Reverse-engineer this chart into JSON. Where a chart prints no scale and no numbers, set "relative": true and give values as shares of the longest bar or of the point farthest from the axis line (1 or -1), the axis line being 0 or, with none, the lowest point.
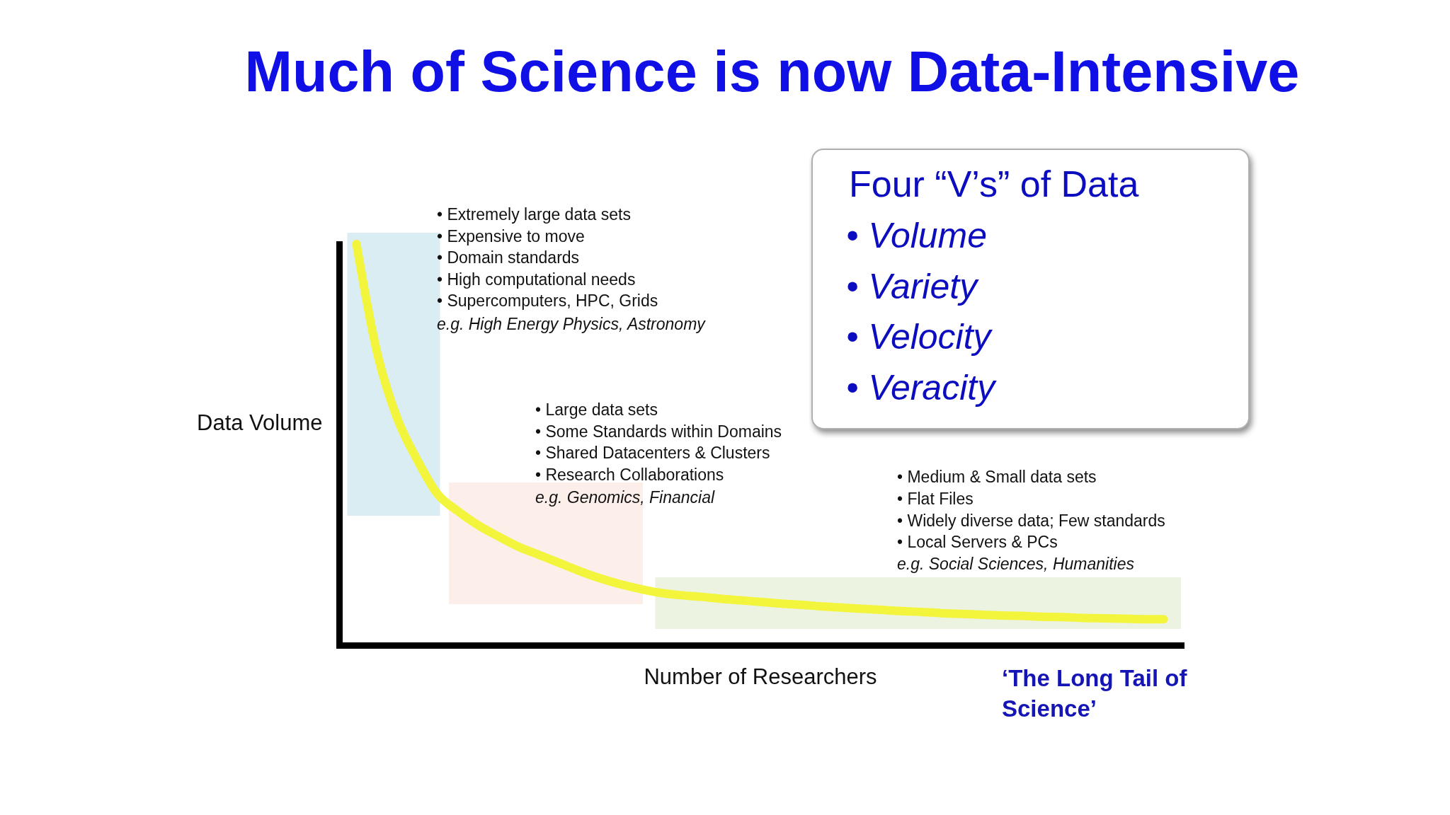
{
  "chart_data": [
    {
      "type": "line",
      "title": "Much of Science is now Data-Intensive",
      "xlabel": "Number of Researchers",
      "ylabel": "Data Volume",
      "relative": true,
      "tick_labels": false,
      "categories": [
        null,
        null,
        null,
        null,
        null,
        null,
        null,
        null,
        null,
        null,
        null,
        null,
        null,
        null,
        null,
        null,
        null,
        null,
        null,
        null,
        null,
        null,
        null,
        null,
        null,
        null,
        null,
        null,
        null,
        null,
        null,
        null,
        null,
        null,
        null,
        null,
        null,
        null,
        null,
        null,
        null
      ],
      "series": [
        {
          "color": "#f2f53c",
          "values": [
            1,
            0.734,
            0.568,
            0.463,
            0.378,
            0.335,
            0.3,
            0.272,
            0.246,
            0.226,
            0.206,
            0.186,
            0.168,
            0.153,
            0.141,
            0.131,
            0.125,
            0.121,
            0.116,
            0.112,
            0.108,
            0.104,
            0.101,
            0.097,
            0.094,
            0.091,
            0.088,
            0.085,
            0.083,
            0.08,
            0.078,
            0.076,
            0.074,
            0.073,
            0.071,
            0.07,
            0.068,
            0.067,
            0.066,
            0.065,
            0.065
          ]
        }
      ],
      "annotations": [
        "• Extremely large data sets",
        "• Expensive to move",
        "• Domain standards",
        "• High computational needs",
        "• Supercomputers, HPC, Grids",
        "e.g. High Energy Physics, Astronomy",
        "• Large data sets",
        "• Some Standards within Domains",
        "• Shared Datacenters & Clusters",
        "• Research Collaborations",
        "e.g. Genomics, Financial",
        "• Medium & Small data sets",
        "• Flat Files",
        "• Widely diverse data; Few standards",
        "• Local Servers & PCs",
        "e.g. Social Sciences, Humanities",
        "‘The Long Tail of Science’"
      ]
    },
    {
      "type": "other",
      "title": "Four “V’s” of Data",
      "annotations": [
        "• Volume",
        "• Variety",
        "• Velocity",
        "• Veracity"
      ]
    }
  ]
}
